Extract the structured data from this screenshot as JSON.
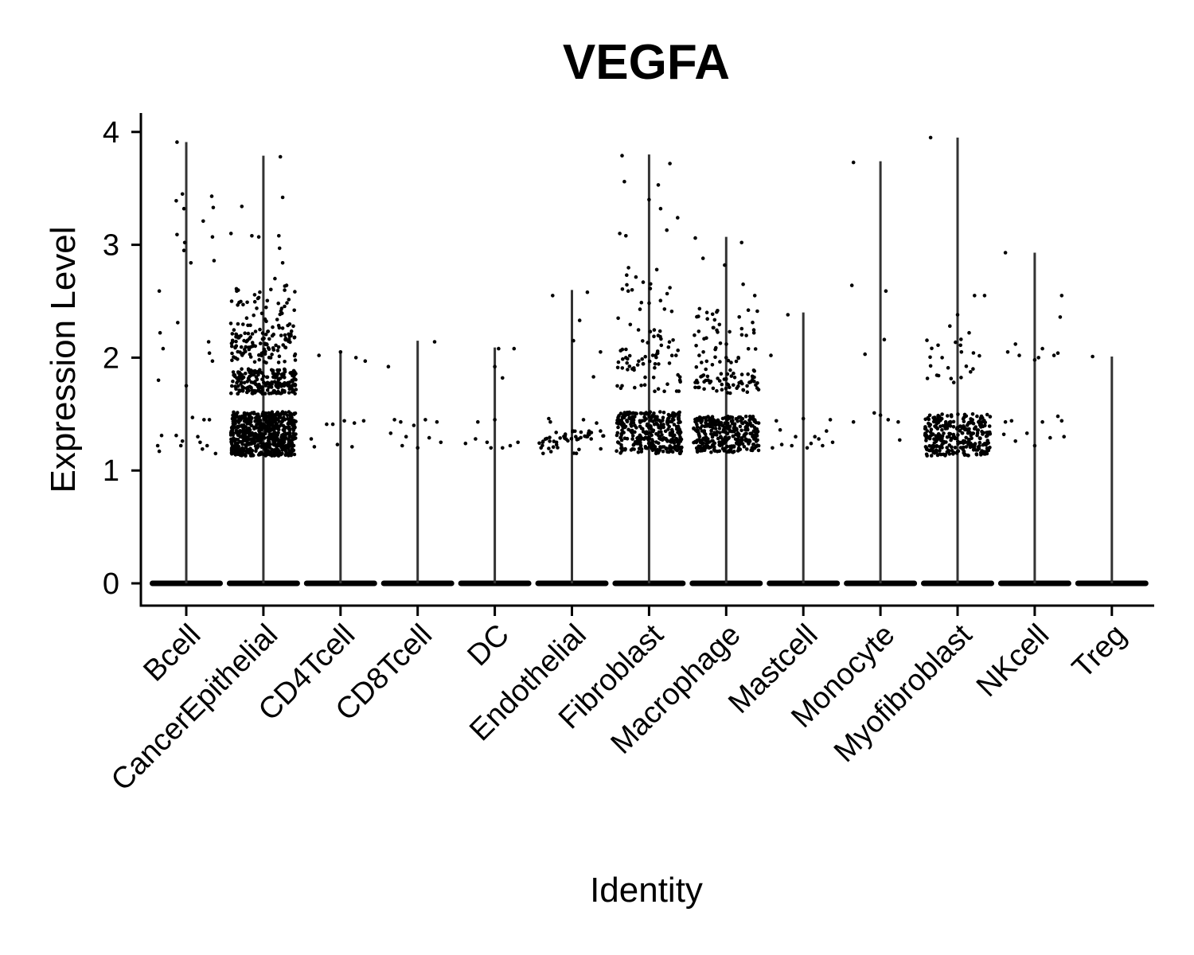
{
  "chart_data": {
    "type": "violin",
    "title": "VEGFA",
    "xlabel": "Identity",
    "ylabel": "Expression Level",
    "ylim": [
      -0.2,
      4.15
    ],
    "yticks": [
      0,
      1,
      2,
      3,
      4
    ],
    "grid": false,
    "legend": "none",
    "point_color": "#000000",
    "violin_color": "#333333",
    "categories": [
      "Bcell",
      "CancerEpithelial",
      "CD4Tcell",
      "CD8Tcell",
      "DC",
      "Endothelial",
      "Fibroblast",
      "Macrophage",
      "Mastcell",
      "Monocyte",
      "Myofibroblast",
      "NKcell",
      "Treg"
    ],
    "max_values": [
      3.91,
      3.79,
      2.05,
      2.15,
      2.09,
      2.6,
      3.8,
      3.07,
      2.4,
      3.74,
      3.95,
      2.93,
      2.01
    ],
    "expressing_points": [
      [
        [
          -0.12,
          3.91
        ],
        [
          -0.13,
          3.39
        ],
        [
          -0.05,
          3.45
        ],
        [
          -0.03,
          3.32
        ],
        [
          -0.12,
          3.09
        ],
        [
          -0.02,
          3.02
        ],
        [
          0.33,
          3.43
        ],
        [
          0.35,
          3.33
        ],
        [
          0.22,
          3.21
        ],
        [
          0.34,
          3.07
        ],
        [
          -0.03,
          2.95
        ],
        [
          0.36,
          2.86
        ],
        [
          0.06,
          2.84
        ],
        [
          -0.35,
          2.59
        ],
        [
          -0.34,
          2.22
        ],
        [
          -0.3,
          2.08
        ],
        [
          -0.11,
          2.31
        ],
        [
          0.29,
          2.14
        ],
        [
          0.3,
          2.04
        ],
        [
          0.34,
          1.97
        ],
        [
          -0.36,
          1.8
        ],
        [
          0.0,
          1.75
        ],
        [
          -0.32,
          1.31
        ],
        [
          -0.37,
          1.22
        ],
        [
          -0.35,
          1.17
        ],
        [
          -0.13,
          1.31
        ],
        [
          -0.07,
          1.22
        ],
        [
          0.08,
          1.47
        ],
        [
          0.15,
          1.3
        ],
        [
          0.18,
          1.25
        ],
        [
          0.27,
          1.22
        ],
        [
          0.38,
          1.15
        ],
        [
          0.3,
          1.45
        ],
        [
          0.23,
          1.45
        ],
        [
          -0.05,
          1.26
        ],
        [
          0.21,
          1.19
        ]
      ],
      [
        [
          0.22,
          3.78
        ],
        [
          0.25,
          3.42
        ],
        [
          0.2,
          3.08
        ],
        [
          0.21,
          2.97
        ],
        [
          0.25,
          2.84
        ],
        [
          0.15,
          2.7
        ],
        [
          -0.28,
          3.34
        ],
        [
          -0.42,
          3.1
        ],
        [
          -0.15,
          3.08
        ],
        [
          -0.06,
          3.07
        ],
        [
          -0.35,
          2.61
        ],
        [
          0.3,
          2.64
        ],
        [
          0.4,
          2.42
        ],
        [
          0.12,
          2.27
        ],
        [
          0.28,
          2.2
        ]
      ],
      [
        [
          0.0,
          2.05
        ],
        [
          -0.28,
          2.02
        ],
        [
          0.2,
          2.0
        ],
        [
          0.32,
          1.97
        ],
        [
          -0.38,
          1.28
        ],
        [
          -0.34,
          1.21
        ],
        [
          -0.18,
          1.41
        ],
        [
          -0.1,
          1.41
        ],
        [
          0.05,
          1.44
        ],
        [
          0.18,
          1.42
        ],
        [
          0.3,
          1.44
        ],
        [
          -0.04,
          1.23
        ],
        [
          0.15,
          1.21
        ]
      ],
      [
        [
          -0.38,
          1.92
        ],
        [
          0.22,
          2.14
        ],
        [
          -0.3,
          1.45
        ],
        [
          -0.22,
          1.43
        ],
        [
          -0.05,
          1.4
        ],
        [
          0.1,
          1.45
        ],
        [
          0.25,
          1.43
        ],
        [
          -0.35,
          1.33
        ],
        [
          -0.15,
          1.3
        ],
        [
          0.0,
          1.2
        ],
        [
          0.15,
          1.29
        ],
        [
          0.3,
          1.25
        ],
        [
          -0.2,
          1.22
        ]
      ],
      [
        [
          0.05,
          2.08
        ],
        [
          0.25,
          2.08
        ],
        [
          0.0,
          1.92
        ],
        [
          0.1,
          1.82
        ],
        [
          -0.38,
          1.24
        ],
        [
          -0.25,
          1.28
        ],
        [
          -0.22,
          1.43
        ],
        [
          -0.1,
          1.25
        ],
        [
          0.0,
          1.45
        ],
        [
          0.1,
          1.2
        ],
        [
          0.2,
          1.22
        ],
        [
          0.3,
          1.25
        ],
        [
          -0.05,
          1.2
        ]
      ],
      [
        [
          -0.25,
          2.55
        ],
        [
          0.2,
          2.58
        ],
        [
          0.1,
          2.33
        ],
        [
          0.02,
          2.15
        ],
        [
          0.37,
          2.05
        ],
        [
          0.28,
          1.83
        ],
        [
          -0.3,
          1.46
        ],
        [
          -0.28,
          1.43
        ],
        [
          0.15,
          1.45
        ],
        [
          0.32,
          1.42
        ],
        [
          0.37,
          1.35
        ],
        [
          -0.4,
          1.2
        ],
        [
          -0.2,
          1.25
        ],
        [
          0.05,
          1.3
        ],
        [
          0.25,
          1.28
        ]
      ],
      [
        [
          -0.35,
          3.79
        ],
        [
          -0.32,
          3.56
        ],
        [
          0.12,
          3.53
        ],
        [
          0.27,
          3.72
        ],
        [
          0.37,
          3.24
        ],
        [
          0.23,
          3.13
        ],
        [
          -0.38,
          3.1
        ],
        [
          -0.3,
          3.08
        ],
        [
          0.0,
          3.4
        ],
        [
          0.15,
          3.32
        ],
        [
          0.1,
          2.78
        ],
        [
          0.27,
          2.62
        ],
        [
          -0.4,
          2.35
        ],
        [
          -0.22,
          2.6
        ],
        [
          -0.3,
          2.0
        ],
        [
          0.2,
          2.43
        ],
        [
          0.35,
          2.02
        ],
        [
          0.4,
          1.8
        ],
        [
          -0.35,
          1.75
        ]
      ],
      [
        [
          -0.4,
          3.06
        ],
        [
          -0.3,
          2.88
        ],
        [
          0.2,
          3.02
        ],
        [
          -0.02,
          2.82
        ],
        [
          0.22,
          2.65
        ],
        [
          -0.25,
          2.4
        ],
        [
          0.37,
          2.55
        ],
        [
          -0.35,
          2.02
        ],
        [
          0.36,
          2.22
        ],
        [
          0.0,
          2.0
        ],
        [
          0.3,
          1.78
        ],
        [
          -0.4,
          1.78
        ]
      ],
      [
        [
          -0.42,
          2.02
        ],
        [
          -0.2,
          2.38
        ],
        [
          0.0,
          1.46
        ],
        [
          -0.35,
          1.44
        ],
        [
          -0.3,
          1.36
        ],
        [
          0.35,
          1.45
        ],
        [
          0.3,
          1.35
        ],
        [
          0.2,
          1.28
        ],
        [
          0.1,
          1.24
        ],
        [
          -0.1,
          1.3
        ],
        [
          -0.4,
          1.2
        ],
        [
          -0.28,
          1.23
        ],
        [
          0.05,
          1.2
        ],
        [
          0.38,
          1.25
        ],
        [
          -0.15,
          1.22
        ],
        [
          0.25,
          1.22
        ],
        [
          0.15,
          1.3
        ]
      ],
      [
        [
          -0.35,
          3.73
        ],
        [
          -0.37,
          2.64
        ],
        [
          0.07,
          2.59
        ],
        [
          0.05,
          2.16
        ],
        [
          -0.2,
          2.03
        ],
        [
          -0.35,
          1.43
        ],
        [
          0.0,
          1.49
        ],
        [
          -0.08,
          1.51
        ],
        [
          0.23,
          1.43
        ],
        [
          0.25,
          1.27
        ],
        [
          0.1,
          1.45
        ]
      ],
      [
        [
          -0.35,
          3.95
        ],
        [
          0.22,
          2.55
        ],
        [
          0.35,
          2.55
        ],
        [
          0.0,
          2.38
        ],
        [
          0.15,
          2.22
        ],
        [
          -0.1,
          2.28
        ],
        [
          0.05,
          2.05
        ],
        [
          -0.2,
          2.0
        ],
        [
          0.2,
          1.9
        ],
        [
          -0.05,
          1.78
        ]
      ],
      [
        [
          -0.38,
          2.93
        ],
        [
          0.35,
          2.55
        ],
        [
          0.33,
          2.36
        ],
        [
          -0.25,
          2.12
        ],
        [
          -0.35,
          2.05
        ],
        [
          -0.2,
          2.02
        ],
        [
          0.0,
          1.98
        ],
        [
          0.05,
          2.0
        ],
        [
          0.1,
          2.08
        ],
        [
          0.25,
          2.02
        ],
        [
          0.3,
          2.04
        ],
        [
          -0.38,
          1.43
        ],
        [
          -0.3,
          1.44
        ],
        [
          -0.1,
          1.33
        ],
        [
          -0.25,
          1.26
        ],
        [
          -0.4,
          1.32
        ],
        [
          0.0,
          1.22
        ],
        [
          0.1,
          1.43
        ],
        [
          0.2,
          1.29
        ],
        [
          0.3,
          1.48
        ],
        [
          0.35,
          1.44
        ],
        [
          0.38,
          1.3
        ]
      ],
      [
        [
          -0.25,
          2.01
        ]
      ]
    ],
    "dense_bands": [
      [],
      [
        [
          1.13,
          1.52,
          650
        ],
        [
          1.68,
          1.9,
          220
        ],
        [
          1.95,
          2.25,
          110
        ],
        [
          2.25,
          2.65,
          45
        ]
      ],
      [],
      [],
      [],
      [
        [
          1.15,
          1.35,
          45
        ]
      ],
      [
        [
          1.15,
          1.52,
          320
        ],
        [
          1.7,
          2.2,
          60
        ],
        [
          2.2,
          2.8,
          20
        ]
      ],
      [
        [
          1.16,
          1.48,
          320
        ],
        [
          1.68,
          1.86,
          55
        ],
        [
          1.86,
          2.45,
          50
        ]
      ],
      [],
      [],
      [
        [
          1.13,
          1.5,
          300
        ],
        [
          1.7,
          2.2,
          18
        ]
      ],
      [],
      []
    ]
  }
}
